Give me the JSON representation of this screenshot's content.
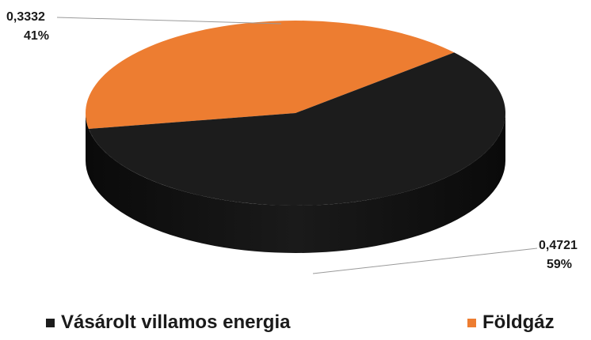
{
  "chart_data": {
    "type": "pie",
    "style": "3d",
    "title": "",
    "categories": [
      "Vásárolt villamos energia",
      "Földgáz"
    ],
    "values": [
      0.4721,
      0.3332
    ],
    "value_labels": [
      "0,4721",
      "0,3332"
    ],
    "percent_labels": [
      "59%",
      "41%"
    ],
    "colors": [
      "#1c1c1c",
      "#ed7d31"
    ],
    "legend": {
      "placement": "bottom",
      "items": [
        {
          "label": "Vásárolt villamos energia",
          "color": "#1c1c1c"
        },
        {
          "label": "Földgáz",
          "color": "#ed7d31"
        }
      ]
    }
  }
}
